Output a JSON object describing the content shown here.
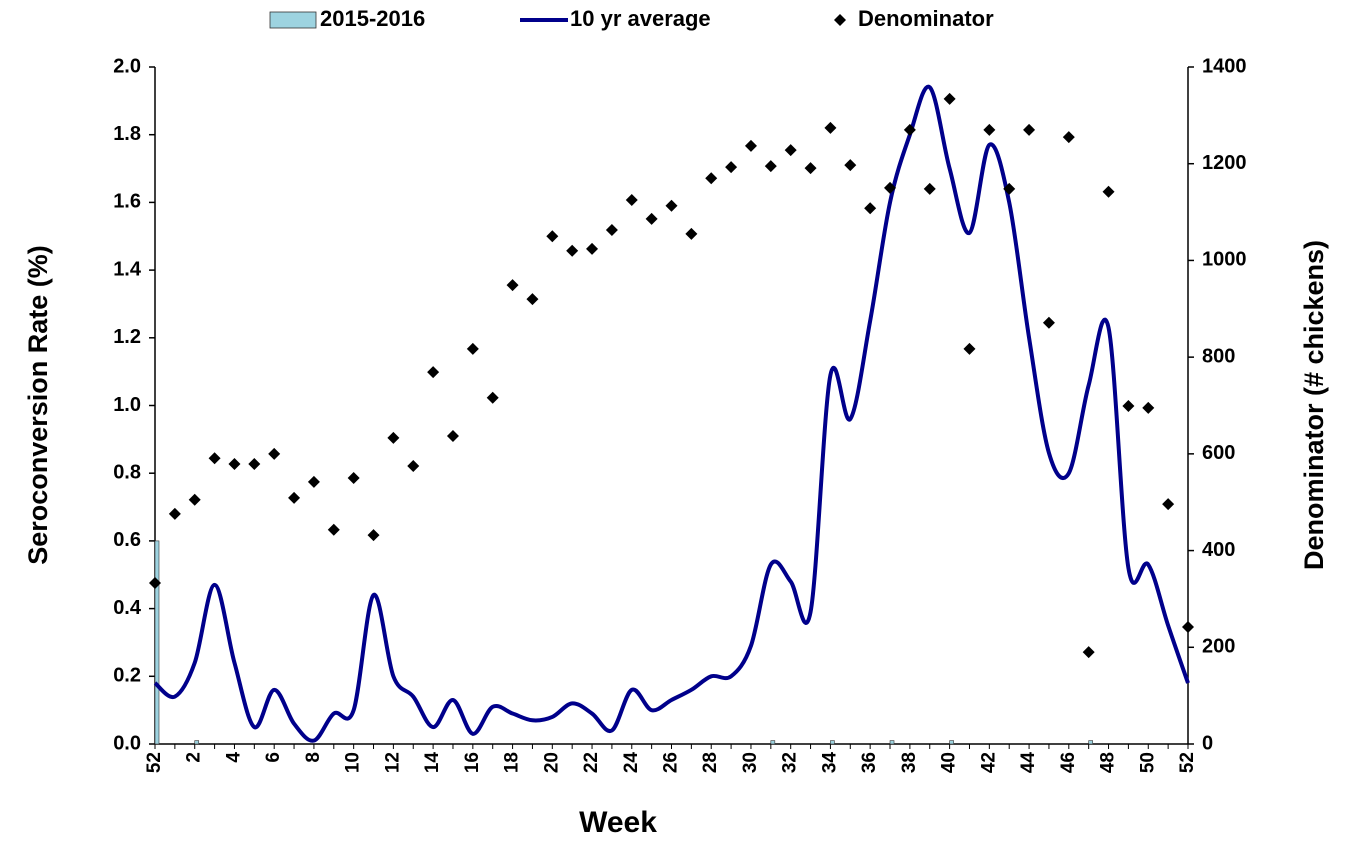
{
  "chart_data": {
    "type": "combo",
    "x_label": "Week",
    "y_label": "Seroconversion Rate (%)",
    "y2_label": "Denominator (# chickens)",
    "legend": "top",
    "categories": [
      "52",
      null,
      "2",
      null,
      "4",
      null,
      "6",
      null,
      "8",
      null,
      "10",
      null,
      "12",
      null,
      "14",
      null,
      "16",
      null,
      "18",
      null,
      "20",
      null,
      "22",
      null,
      "24",
      null,
      "26",
      null,
      "28",
      null,
      "30",
      null,
      "32",
      null,
      "34",
      null,
      "36",
      null,
      "38",
      null,
      "40",
      null,
      "42",
      null,
      "44",
      null,
      "46",
      null,
      "48",
      null,
      "50",
      null,
      "52"
    ],
    "ylim": [
      0,
      2
    ],
    "yticks": [
      {
        "value": 0,
        "label": "0.0"
      },
      0.2,
      0.4,
      0.6,
      0.8,
      {
        "value": 1,
        "label": "1.0"
      },
      1.2,
      1.4,
      1.6,
      1.8,
      {
        "value": 2,
        "label": "2.0"
      }
    ],
    "y2lim": [
      0,
      1400
    ],
    "y2ticks": [
      0,
      200,
      400,
      600,
      800,
      1000,
      1200,
      1400
    ],
    "series": [
      {
        "name": "2015-2016",
        "type": "bar",
        "color": "#9dd3e0",
        "values": [
          0.6,
          0,
          0.01,
          0,
          0,
          0,
          0,
          0,
          0,
          0,
          0,
          0,
          0,
          0,
          0,
          0,
          0,
          0,
          0,
          0,
          0,
          0,
          0,
          0,
          0,
          0,
          0,
          0,
          0,
          0,
          0,
          0.01,
          0,
          0,
          0.01,
          0,
          0,
          0.01,
          0,
          0,
          0.01,
          0,
          0,
          0,
          0,
          0,
          0,
          0.01,
          0,
          0,
          0,
          0,
          0
        ]
      },
      {
        "name": "10 yr average",
        "type": "line",
        "color": "#00008b",
        "values": [
          0.18,
          0.14,
          0.24,
          0.47,
          0.24,
          0.05,
          0.16,
          0.06,
          0.01,
          0.09,
          0.1,
          0.44,
          0.2,
          0.14,
          0.05,
          0.13,
          0.03,
          0.11,
          0.09,
          0.07,
          0.08,
          0.12,
          0.09,
          0.04,
          0.16,
          0.1,
          0.13,
          0.16,
          0.2,
          0.2,
          0.29,
          0.53,
          0.48,
          0.39,
          1.09,
          0.96,
          1.25,
          1.6,
          1.8,
          1.94,
          1.7,
          1.51,
          1.77,
          1.6,
          1.2,
          0.86,
          0.8,
          1.06,
          1.23,
          0.52,
          0.53,
          0.35,
          0.18
        ]
      },
      {
        "name": "Denominator",
        "type": "scatter",
        "axis": "y2",
        "color": "#000000",
        "values": [
          333,
          476,
          505,
          591,
          579,
          579,
          600,
          509,
          542,
          443,
          550,
          432,
          633,
          575,
          769,
          637,
          817,
          716,
          949,
          920,
          1050,
          1020,
          1024,
          1063,
          1125,
          1086,
          1113,
          1055,
          1170,
          1193,
          1237,
          1195,
          1228,
          1191,
          1274,
          1197,
          1108,
          1150,
          1270,
          1148,
          1334,
          817,
          1270,
          1148,
          1270,
          871,
          1255,
          190,
          1142,
          699,
          695,
          496,
          242
        ]
      }
    ]
  }
}
